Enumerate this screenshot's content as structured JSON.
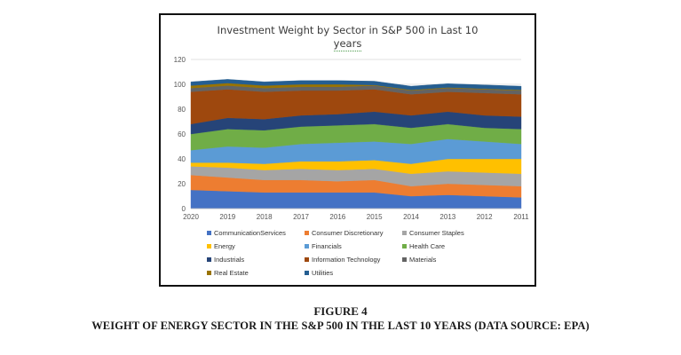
{
  "chart_data": {
    "type": "area",
    "title_line1": "Investment Weight by Sector in S&P 500 in Last 10",
    "title_line2": "years",
    "x": [
      "2020",
      "2019",
      "2018",
      "2017",
      "2016",
      "2015",
      "2014",
      "2013",
      "2012",
      "2011"
    ],
    "ylim": [
      0,
      120
    ],
    "yticks": [
      "0",
      "20",
      "40",
      "60",
      "80",
      "100",
      "120"
    ],
    "grid": true,
    "legend_position": "bottom",
    "series": [
      {
        "name": "CommunicationServices",
        "color": "#4472C4",
        "values": [
          15,
          14,
          13,
          13,
          13,
          13,
          10,
          11,
          10,
          9
        ]
      },
      {
        "name": "Consumer Discretionary",
        "color": "#ED7D31",
        "values": [
          12,
          11,
          10,
          10,
          9,
          10,
          8,
          9,
          9,
          9
        ]
      },
      {
        "name": "Consumer Staples",
        "color": "#A5A5A5",
        "values": [
          7,
          8,
          8,
          9,
          9,
          9,
          10,
          10,
          10,
          10
        ]
      },
      {
        "name": "Energy",
        "color": "#FFC000",
        "values": [
          3,
          4,
          5,
          6,
          7,
          7,
          8,
          10,
          11,
          12
        ]
      },
      {
        "name": "Financials",
        "color": "#5B9BD5",
        "values": [
          10,
          13,
          13,
          14,
          15,
          15,
          16,
          16,
          14,
          12
        ]
      },
      {
        "name": "Health Care",
        "color": "#70AD47",
        "values": [
          13,
          14,
          14,
          14,
          14,
          14,
          13,
          12,
          11,
          12
        ]
      },
      {
        "name": "Industrials",
        "color": "#264478",
        "values": [
          8,
          9,
          9,
          9,
          9,
          10,
          10,
          10,
          10,
          10
        ]
      },
      {
        "name": "Information Technology",
        "color": "#9E480E",
        "values": [
          26,
          23,
          22,
          20,
          19,
          18,
          17,
          16,
          18,
          18
        ]
      },
      {
        "name": "Materials",
        "color": "#636363",
        "values": [
          3,
          3,
          3,
          3,
          3,
          3,
          3,
          3,
          3,
          3
        ]
      },
      {
        "name": "Real Estate",
        "color": "#997300",
        "values": [
          2,
          2,
          2,
          2,
          2,
          0.5,
          0.5,
          0.5,
          0.5,
          0.5
        ]
      },
      {
        "name": "Utilities",
        "color": "#255E91",
        "values": [
          3,
          3,
          3,
          3,
          3,
          3,
          3,
          3,
          3,
          3
        ]
      }
    ]
  },
  "caption": {
    "figure_label": "FIGURE 4",
    "text": "WEIGHT OF ENERGY SECTOR IN THE S&P 500 IN THE LAST 10 YEARS (DATA SOURCE: EPA)"
  }
}
